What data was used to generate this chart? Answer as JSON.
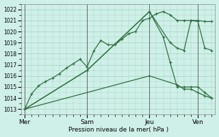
{
  "bg_color": "#cff0e8",
  "grid_color": "#a0cfc0",
  "line_color": "#2d6e3e",
  "marker_color": "#2d6e3e",
  "xlabel": "Pression niveau de la mer( hPa )",
  "ylim": [
    1012.5,
    1022.5
  ],
  "yticks": [
    1013,
    1014,
    1015,
    1016,
    1017,
    1018,
    1019,
    1020,
    1021,
    1022
  ],
  "day_labels": [
    "Mer",
    "Sam",
    "Jeu",
    "Ven"
  ],
  "day_positions": [
    0,
    9,
    18,
    25
  ],
  "xlim": [
    -0.5,
    27.5
  ],
  "series1_x": [
    0,
    1,
    2,
    3,
    4,
    5,
    6,
    7,
    8,
    9,
    10,
    11,
    12,
    13,
    14,
    15,
    16,
    17,
    18,
    19,
    20,
    21,
    22,
    23,
    24,
    25,
    26,
    27
  ],
  "series1_y": [
    1013.0,
    1014.4,
    1015.1,
    1015.5,
    1015.8,
    1016.2,
    1016.7,
    1017.1,
    1017.5,
    1016.8,
    1018.3,
    1019.2,
    1018.8,
    1018.8,
    1019.3,
    1019.8,
    1020.0,
    1021.0,
    1021.2,
    1021.6,
    1021.8,
    1021.5,
    1021.0,
    1021.0,
    1021.0,
    1020.9,
    1018.5,
    1018.3
  ],
  "series2_x": [
    0,
    9,
    18,
    21,
    22,
    23,
    24,
    25,
    26,
    27
  ],
  "series2_y": [
    1013.0,
    1016.5,
    1021.8,
    1019.0,
    1018.5,
    1018.3,
    1021.0,
    1021.0,
    1020.9,
    1020.9
  ],
  "series3_x": [
    0,
    18,
    22,
    23,
    24,
    25,
    26,
    27
  ],
  "series3_y": [
    1013.0,
    1016.0,
    1015.2,
    1014.8,
    1014.8,
    1014.5,
    1014.2,
    1014.0
  ],
  "series4_x": [
    0,
    9,
    18,
    20,
    21,
    22,
    23,
    24,
    25,
    26,
    27
  ],
  "series4_y": [
    1013.0,
    1016.5,
    1021.8,
    1019.5,
    1017.2,
    1015.0,
    1015.0,
    1015.0,
    1015.0,
    1014.5,
    1014.0
  ],
  "vline_color": "#555555",
  "vline_positions": [
    0,
    9,
    18,
    25
  ]
}
